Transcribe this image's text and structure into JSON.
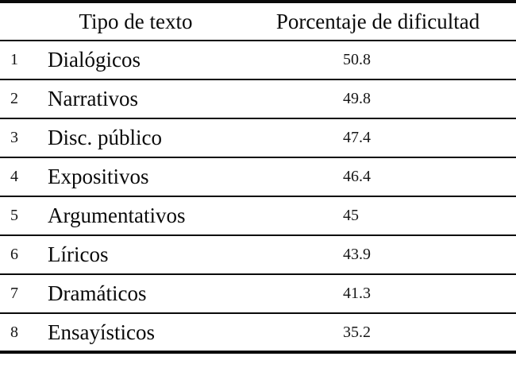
{
  "header": {
    "type_label": "Tipo de texto",
    "value_label": "Porcentaje de dificultad"
  },
  "rows": [
    {
      "num": "1",
      "label": "Dialógicos",
      "value": "50.8"
    },
    {
      "num": "2",
      "label": "Narrativos",
      "value": "49.8"
    },
    {
      "num": "3",
      "label": "Disc. público",
      "value": "47.4"
    },
    {
      "num": "4",
      "label": "Expositivos",
      "value": "46.4"
    },
    {
      "num": "5",
      "label": "Argumentativos",
      "value": "45"
    },
    {
      "num": "6",
      "label": "Líricos",
      "value": "43.9"
    },
    {
      "num": "7",
      "label": "Dramáticos",
      "value": "41.3"
    },
    {
      "num": "8",
      "label": "Ensayísticos",
      "value": "35.2"
    }
  ],
  "chart_data": {
    "type": "table",
    "columns": [
      "",
      "Tipo de texto",
      "Porcentaje de dificultad"
    ],
    "rows": [
      [
        "1",
        "Dialógicos",
        50.8
      ],
      [
        "2",
        "Narrativos",
        49.8
      ],
      [
        "3",
        "Disc. público",
        47.4
      ],
      [
        "4",
        "Expositivos",
        46.4
      ],
      [
        "5",
        "Argumentativos",
        45
      ],
      [
        "6",
        "Líricos",
        43.9
      ],
      [
        "7",
        "Dramáticos",
        41.3
      ],
      [
        "8",
        "Ensayísticos",
        35.2
      ]
    ]
  }
}
